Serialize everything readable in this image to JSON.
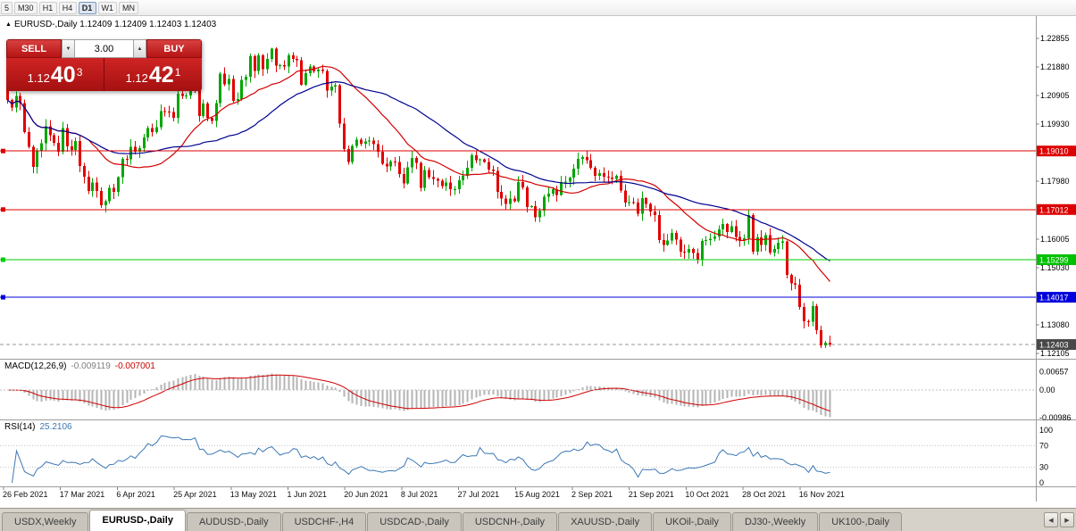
{
  "toolbar": {
    "timeframes": [
      {
        "label": "5",
        "active": false
      },
      {
        "label": "M30",
        "active": false
      },
      {
        "label": "H1",
        "active": false
      },
      {
        "label": "H4",
        "active": false
      },
      {
        "label": "D1",
        "active": true
      },
      {
        "label": "W1",
        "active": false
      },
      {
        "label": "MN",
        "active": false
      }
    ]
  },
  "icons": {
    "header_marker": "▲",
    "spin_down": "▼",
    "spin_up": "▲",
    "tab_scroll_left": "◀",
    "tab_scroll_right": "▶"
  },
  "chart_header": {
    "text": "EURUSD-,Daily 1.12409 1.12409 1.12403 1.12403"
  },
  "trade_panel": {
    "sell_label": "SELL",
    "buy_label": "BUY",
    "volume": "3.00",
    "sell_price_small": "1.12",
    "sell_price_big": "40",
    "sell_price_sup": "3",
    "buy_price_small": "1.12",
    "buy_price_big": "42",
    "buy_price_sup": "1"
  },
  "price_axis": {
    "labels": [
      {
        "text": "1.22855",
        "value": 1.22855
      },
      {
        "text": "1.21880",
        "value": 1.2188
      },
      {
        "text": "1.20905",
        "value": 1.20905
      },
      {
        "text": "1.19930",
        "value": 1.1993
      },
      {
        "text": "1.17980",
        "value": 1.1798
      },
      {
        "text": "1.16005",
        "value": 1.16005
      },
      {
        "text": "1.15030",
        "value": 1.1503
      },
      {
        "text": "1.13080",
        "value": 1.1308
      },
      {
        "text": "1.12105",
        "value": 1.12105
      }
    ],
    "badges": [
      {
        "text": "1.19010",
        "value": 1.1901,
        "color": "#dd0000",
        "kind": "hline"
      },
      {
        "text": "1.17012",
        "value": 1.17012,
        "color": "#dd0000",
        "kind": "hline"
      },
      {
        "text": "1.15299",
        "value": 1.15299,
        "color": "#00c000",
        "kind": "hline"
      },
      {
        "text": "1.14017",
        "value": 1.14017,
        "color": "#0000dd",
        "kind": "hline"
      },
      {
        "text": "1.12403",
        "value": 1.12403,
        "color": "#484848",
        "kind": "current-price"
      }
    ]
  },
  "hlines": [
    {
      "value": 1.1901,
      "color": "#dd0000"
    },
    {
      "value": 1.17012,
      "color": "#dd0000"
    },
    {
      "value": 1.15299,
      "color": "#00cc00"
    },
    {
      "value": 1.14017,
      "color": "#0000dd"
    }
  ],
  "current_price": {
    "value": 1.12403,
    "text": "1.12403",
    "line_color": "#999999",
    "badge_color": "#484848"
  },
  "indicators": {
    "macd": {
      "label": "MACD(12,26,9)",
      "value_main": "-0.009119",
      "value_signal": "-0.007001",
      "axis": [
        {
          "text": "0.00657",
          "value": 0.00657
        },
        {
          "text": "0.00",
          "value": 0
        },
        {
          "text": "-0.00986",
          "value": -0.00986
        }
      ]
    },
    "rsi": {
      "label": "RSI(14)",
      "value": "25.2106",
      "axis": [
        {
          "text": "100",
          "value": 100
        },
        {
          "text": "70",
          "value": 70
        },
        {
          "text": "30",
          "value": 30
        },
        {
          "text": "0",
          "value": 0
        }
      ],
      "levels": [
        70,
        30
      ]
    }
  },
  "date_axis": [
    "26 Feb 2021",
    "17 Mar 2021",
    "6 Apr 2021",
    "25 Apr 2021",
    "13 May 2021",
    "1 Jun 2021",
    "20 Jun 2021",
    "8 Jul 2021",
    "27 Jul 2021",
    "15 Aug 2021",
    "2 Sep 2021",
    "21 Sep 2021",
    "10 Oct 2021",
    "28 Oct 2021",
    "16 Nov 2021"
  ],
  "tabs": [
    {
      "label": "USDX,Weekly",
      "active": false
    },
    {
      "label": "EURUSD-,Daily",
      "active": true
    },
    {
      "label": "AUDUSD-,Daily",
      "active": false
    },
    {
      "label": "USDCHF-,H4",
      "active": false
    },
    {
      "label": "USDCAD-,Daily",
      "active": false
    },
    {
      "label": "USDCNH-,Daily",
      "active": false
    },
    {
      "label": "XAUUSD-,Daily",
      "active": false
    },
    {
      "label": "UKOil-,Daily",
      "active": false
    },
    {
      "label": "DJ30-,Weekly",
      "active": false
    },
    {
      "label": "UK100-,Daily",
      "active": false
    }
  ],
  "chart_data": {
    "type": "candlestick",
    "symbol": "EURUSD-",
    "timeframe": "Daily",
    "header_ohlc": [
      1.12409,
      1.12409,
      1.12403,
      1.12403
    ],
    "current_price": 1.12403,
    "horizontal_lines": [
      1.1901,
      1.17012,
      1.15299,
      1.14017
    ],
    "first_open": 1.2175,
    "closes": [
      1.2075,
      1.2049,
      1.2089,
      1.2064,
      1.1966,
      1.1915,
      1.1847,
      1.19,
      1.1927,
      1.1985,
      1.1955,
      1.1929,
      1.1899,
      1.198,
      1.1917,
      1.1904,
      1.1935,
      1.185,
      1.1813,
      1.1765,
      1.1794,
      1.1764,
      1.1716,
      1.173,
      1.1775,
      1.1761,
      1.1812,
      1.1874,
      1.1873,
      1.1916,
      1.1899,
      1.1911,
      1.1948,
      1.1979,
      1.1966,
      1.1982,
      1.2037,
      1.2036,
      1.2034,
      1.2015,
      1.2097,
      1.2089,
      1.2091,
      1.2126,
      1.2122,
      1.202,
      1.2063,
      1.2014,
      1.2004,
      1.2065,
      1.2165,
      1.2128,
      1.2147,
      1.2072,
      1.2079,
      1.2144,
      1.2154,
      1.2224,
      1.2174,
      1.2228,
      1.2181,
      1.2215,
      1.225,
      1.2193,
      1.2194,
      1.2189,
      1.2227,
      1.2216,
      1.2211,
      1.2127,
      1.2166,
      1.219,
      1.2173,
      1.2179,
      1.2174,
      1.2107,
      1.2121,
      1.2126,
      1.1995,
      1.1907,
      1.1863,
      1.1919,
      1.194,
      1.1926,
      1.1933,
      1.1936,
      1.1925,
      1.1898,
      1.1858,
      1.1848,
      1.1865,
      1.1864,
      1.1823,
      1.179,
      1.1845,
      1.1877,
      1.1861,
      1.1775,
      1.1836,
      1.1812,
      1.1806,
      1.1799,
      1.1782,
      1.1794,
      1.177,
      1.177,
      1.1801,
      1.1816,
      1.1844,
      1.1886,
      1.187,
      1.1872,
      1.1864,
      1.1838,
      1.1833,
      1.1761,
      1.1739,
      1.1721,
      1.1739,
      1.173,
      1.1795,
      1.1777,
      1.171,
      1.1712,
      1.1675,
      1.1697,
      1.1745,
      1.1755,
      1.177,
      1.1751,
      1.1795,
      1.1797,
      1.181,
      1.184,
      1.1874,
      1.188,
      1.187,
      1.1843,
      1.1817,
      1.1825,
      1.1814,
      1.181,
      1.1805,
      1.1816,
      1.1766,
      1.1725,
      1.1726,
      1.1725,
      1.1687,
      1.174,
      1.172,
      1.1695,
      1.1683,
      1.1597,
      1.158,
      1.1595,
      1.1621,
      1.1598,
      1.1558,
      1.1554,
      1.1567,
      1.1553,
      1.153,
      1.1594,
      1.1597,
      1.1601,
      1.1609,
      1.1633,
      1.1652,
      1.1624,
      1.1644,
      1.1607,
      1.1597,
      1.1603,
      1.1682,
      1.1558,
      1.1606,
      1.158,
      1.1613,
      1.1554,
      1.1567,
      1.1588,
      1.1593,
      1.1478,
      1.1449,
      1.1445,
      1.1369,
      1.132,
      1.1318,
      1.1372,
      1.1289,
      1.1237,
      1.1247,
      1.124
    ],
    "moving_averages": [
      {
        "period": 20,
        "color": "#d40000"
      },
      {
        "period": 40,
        "color": "#000090"
      }
    ],
    "macd": {
      "fast": 12,
      "slow": 26,
      "signal": 9,
      "main_value": -0.009119,
      "signal_value": -0.007001
    },
    "rsi": {
      "period": 14,
      "value": 25.2106
    },
    "colors": {
      "up": "#00a600",
      "down": "#e10000",
      "macd_hist": "#b4b4b4",
      "macd_signal": "#d00000",
      "rsi_line": "#3c78b4"
    }
  }
}
